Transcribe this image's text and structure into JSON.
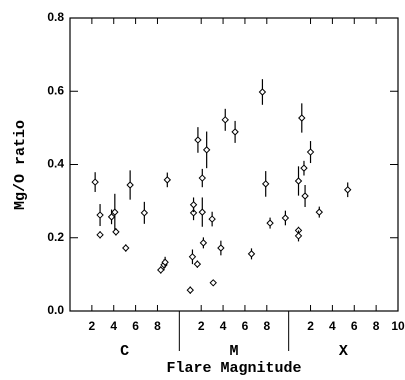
{
  "chart_data": {
    "type": "scatter",
    "x_label": "Flare Magnitude",
    "y_label": "Mg/O ratio",
    "class_labels": [
      "C",
      "M",
      "X"
    ],
    "class_edges": [
      0,
      10,
      20,
      30
    ],
    "xlim": [
      0,
      30
    ],
    "ylim": [
      0,
      0.8
    ],
    "xticks": [
      2,
      4,
      6,
      8,
      {
        "value": 12,
        "label": "2"
      },
      {
        "value": 14,
        "label": "4"
      },
      {
        "value": 16,
        "label": "6"
      },
      {
        "value": 18,
        "label": "8"
      },
      {
        "value": 22,
        "label": "2"
      },
      {
        "value": 24,
        "label": "4"
      },
      {
        "value": 26,
        "label": "6"
      },
      {
        "value": 28,
        "label": "8"
      },
      {
        "value": 30,
        "label": "10"
      }
    ],
    "yticks": [
      {
        "value": 0,
        "label": "0.0"
      },
      0.2,
      0.4,
      0.6,
      0.8
    ],
    "color": "#000000",
    "series": [
      {
        "x": [
          2.3,
          2.75,
          2.75,
          3.8,
          4.1,
          4.2,
          5.1,
          5.5,
          6.8,
          8.3,
          8.6,
          8.7,
          8.9,
          11.0,
          11.2,
          11.3,
          11.3,
          11.65,
          11.7,
          12.1,
          12.1,
          12.2,
          12.5,
          13.0,
          13.1,
          13.8,
          14.2,
          15.1,
          16.6,
          17.6,
          17.9,
          18.3,
          19.7,
          20.9,
          20.9,
          20.9,
          21.2,
          21.4,
          21.5,
          22.0,
          22.8,
          25.4
        ],
        "values": [
          0.352,
          0.262,
          0.208,
          0.257,
          0.27,
          0.216,
          0.172,
          0.344,
          0.268,
          0.112,
          0.126,
          0.133,
          0.358,
          0.057,
          0.148,
          0.268,
          0.29,
          0.128,
          0.467,
          0.363,
          0.27,
          0.186,
          0.44,
          0.251,
          0.077,
          0.172,
          0.522,
          0.489,
          0.156,
          0.598,
          0.347,
          0.24,
          0.254,
          0.355,
          0.22,
          0.205,
          0.527,
          0.39,
          0.314,
          0.434,
          0.27,
          0.331
        ],
        "errors": [
          0.027,
          0.03,
          0.01,
          0.02,
          0.05,
          0.01,
          0.01,
          0.04,
          0.03,
          0.01,
          0.015,
          0.015,
          0.02,
          0.01,
          0.02,
          0.02,
          0.02,
          0.01,
          0.035,
          0.025,
          0.04,
          0.015,
          0.05,
          0.02,
          0.005,
          0.02,
          0.03,
          0.03,
          0.015,
          0.035,
          0.035,
          0.015,
          0.02,
          0.04,
          0.01,
          0.015,
          0.04,
          0.02,
          0.03,
          0.03,
          0.015,
          0.02
        ]
      }
    ]
  }
}
